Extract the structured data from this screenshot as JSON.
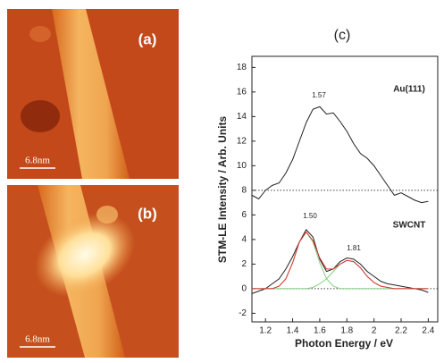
{
  "panels": [
    {
      "label": "(a)",
      "scale_bar": "6.8nm"
    },
    {
      "label": "(b)",
      "scale_bar": "6.8nm"
    }
  ],
  "chart_data": {
    "type": "line",
    "label": "(c)",
    "xlabel": "Photon Energy / eV",
    "ylabel": "STM-LE Intensity / Arb. Units",
    "xlim": [
      1.1,
      2.47
    ],
    "ylim": [
      -2.7,
      18.9
    ],
    "xticks": [
      1.2,
      1.4,
      1.6,
      1.8,
      2.0,
      2.2,
      2.4
    ],
    "yticks": [
      -2,
      0,
      2,
      4,
      6,
      8,
      10,
      12,
      14,
      16,
      18
    ],
    "hlines": [
      8,
      0
    ],
    "x": [
      1.1,
      1.15,
      1.2,
      1.25,
      1.3,
      1.35,
      1.4,
      1.45,
      1.5,
      1.55,
      1.6,
      1.65,
      1.7,
      1.75,
      1.8,
      1.85,
      1.9,
      1.95,
      2.0,
      2.05,
      2.1,
      2.15,
      2.2,
      2.25,
      2.3,
      2.35,
      2.4
    ],
    "series": [
      {
        "name": "Au(111)",
        "color": "#222222",
        "values": [
          7.6,
          7.3,
          8.0,
          8.4,
          8.6,
          9.4,
          10.5,
          12.0,
          13.5,
          14.6,
          14.8,
          14.2,
          14.3,
          13.6,
          12.8,
          11.8,
          11.0,
          10.6,
          10.0,
          9.2,
          8.4,
          7.6,
          7.8,
          7.5,
          7.2,
          7.0,
          7.1
        ]
      },
      {
        "name": "SWCNT",
        "color": "#222222",
        "values": [
          -0.4,
          -0.2,
          0.0,
          0.4,
          0.8,
          1.6,
          2.6,
          3.8,
          4.8,
          4.2,
          2.4,
          1.4,
          1.6,
          2.2,
          2.5,
          2.4,
          2.0,
          1.4,
          1.0,
          0.6,
          0.4,
          0.3,
          0.2,
          0.1,
          0.0,
          -0.1,
          -0.3
        ]
      },
      {
        "color": "#80d080",
        "values": [
          0,
          0,
          0,
          0,
          0.2,
          0.8,
          2.1,
          3.8,
          4.6,
          3.8,
          2.1,
          0.8,
          0.2,
          0,
          0,
          0,
          0,
          0,
          0,
          0,
          0,
          0,
          0,
          0,
          0,
          0,
          0
        ]
      },
      {
        "color": "#80d080",
        "values": [
          0,
          0,
          0,
          0,
          0,
          0,
          0,
          0,
          0,
          0.1,
          0.4,
          0.8,
          1.4,
          2.0,
          2.3,
          2.2,
          1.7,
          1.0,
          0.5,
          0.2,
          0.1,
          0,
          0,
          0,
          0,
          0,
          0
        ]
      },
      {
        "color": "#e03030",
        "values": [
          0,
          0,
          0,
          0,
          0.2,
          0.8,
          2.1,
          3.8,
          4.6,
          3.9,
          2.5,
          1.6,
          1.6,
          2.0,
          2.3,
          2.2,
          1.7,
          1.0,
          0.5,
          0.2,
          0.1,
          0,
          0,
          0,
          0,
          0,
          0
        ]
      }
    ],
    "annotations": [
      {
        "text": "1.57"
      },
      {
        "text": "1.50"
      },
      {
        "text": "1.81"
      }
    ]
  }
}
